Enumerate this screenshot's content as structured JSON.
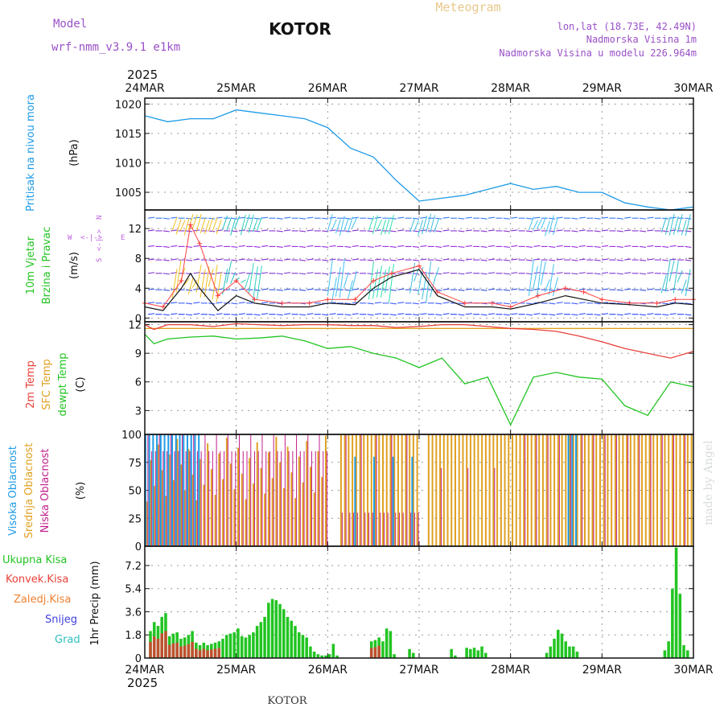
{
  "header": {
    "model_label": "Model",
    "model_name": "wrf-nmm_v3.9.1 e1km",
    "station": "KOTOR",
    "meteogram": "Meteogram",
    "lonlat": "lon,lat (18.73E, 42.49N)",
    "elevation": "Nadmorska Visina 1m",
    "model_elevation": "Nadmorska Visina u modelu 226.964m",
    "footer_station": "KOTOR",
    "watermark": "made by Angel"
  },
  "colors": {
    "pressure": "#1e9be6",
    "t2m": "#e8413a",
    "sfc": "#e0a020",
    "dewpt": "#22c422",
    "high_cloud": "#1e9be6",
    "mid_cloud": "#e0a020",
    "low_cloud": "#c0208a",
    "total_precip": "#22c422",
    "conv_precip": "#e8413a"
  },
  "chart_data": [
    {
      "type": "line",
      "panel": "pressure",
      "ylabel": [
        "Pritisak na nivou mora",
        "(hPa)"
      ],
      "x_categories": [
        "24MAR",
        "25MAR",
        "26MAR",
        "27MAR",
        "28MAR",
        "29MAR",
        "30MAR"
      ],
      "x_year": "2025",
      "yticks": [
        1005,
        1010,
        1015,
        1020
      ],
      "ylim": [
        1002,
        1021
      ],
      "x": [
        0,
        0.25,
        0.5,
        0.75,
        1.0,
        1.25,
        1.5,
        1.75,
        2.0,
        2.25,
        2.5,
        2.75,
        3.0,
        3.25,
        3.5,
        3.75,
        4.0,
        4.25,
        4.5,
        4.75,
        5.0,
        5.25,
        5.5,
        5.75,
        6.0
      ],
      "series": [
        {
          "values": [
            1018,
            1017,
            1017.5,
            1017.5,
            1019,
            1018.5,
            1018,
            1017.5,
            1016,
            1012.5,
            1011,
            1007,
            1003.5,
            1004,
            1004.5,
            1005.5,
            1006.5,
            1005.5,
            1006,
            1005,
            1005,
            1003.2,
            1002.5,
            1002,
            1002.5
          ]
        }
      ]
    },
    {
      "type": "line",
      "panel": "wind",
      "ylabel": [
        "10m Vjetar",
        "Brzina i Pravac",
        "(m/s)"
      ],
      "compass": {
        "n": "N",
        "s": "S",
        "e": "E",
        "w": "W"
      },
      "yticks": [
        0,
        4,
        8,
        12
      ],
      "ylim": [
        -0.5,
        14.5
      ],
      "x": [
        0,
        0.2,
        0.4,
        0.5,
        0.6,
        0.8,
        1.0,
        1.2,
        1.5,
        1.8,
        2.0,
        2.3,
        2.5,
        2.7,
        3.0,
        3.2,
        3.5,
        3.8,
        4.0,
        4.3,
        4.6,
        4.8,
        5.0,
        5.3,
        5.6,
        5.8,
        6.0
      ],
      "series": [
        {
          "values": [
            1.5,
            1.0,
            4.0,
            6.0,
            4.0,
            1.0,
            3.0,
            2.0,
            1.5,
            1.5,
            2.0,
            1.8,
            4.0,
            5.5,
            6.5,
            3.0,
            1.5,
            1.5,
            1.2,
            2.0,
            3.0,
            2.5,
            2.0,
            1.8,
            1.5,
            2.0,
            1.8
          ]
        },
        {
          "values": [
            2.0,
            1.5,
            5.0,
            12.5,
            10.0,
            3.0,
            5.0,
            2.5,
            2.0,
            2.0,
            2.5,
            2.5,
            5.0,
            6.0,
            7.0,
            3.5,
            2.0,
            2.0,
            1.5,
            3.0,
            4.0,
            3.5,
            2.5,
            2.0,
            2.0,
            2.5,
            2.5
          ]
        }
      ],
      "barb_rows": [
        0.5,
        2.0,
        3.8,
        6.0,
        7.8,
        9.6,
        11.7,
        13.4
      ]
    },
    {
      "type": "line",
      "panel": "temperature",
      "ylabel": [
        "2m Temp",
        "SFC Temp",
        "dewpt Temp",
        "(C)"
      ],
      "yticks": [
        3,
        6,
        9,
        12
      ],
      "ylim": [
        0.5,
        12.3
      ],
      "x": [
        0,
        0.1,
        0.25,
        0.5,
        0.75,
        1.0,
        1.25,
        1.5,
        1.75,
        2.0,
        2.25,
        2.5,
        2.75,
        3.0,
        3.25,
        3.5,
        3.75,
        4.0,
        4.25,
        4.5,
        4.75,
        5.0,
        5.25,
        5.5,
        5.75,
        6.0
      ],
      "series": [
        {
          "name": "2m Temp",
          "values": [
            12,
            11.5,
            12,
            12,
            11.8,
            12.1,
            12,
            11.9,
            12,
            12,
            11.9,
            11.9,
            11.7,
            11.8,
            12,
            12,
            11.8,
            11.6,
            11.5,
            11.3,
            10.8,
            10.2,
            9.5,
            9,
            8.5,
            9.2
          ]
        },
        {
          "name": "SFC Temp",
          "values": [
            11.6,
            11.6,
            11.6,
            11.6,
            11.6,
            11.6,
            11.6,
            11.6,
            11.6,
            11.6,
            11.6,
            11.6,
            11.6,
            11.6,
            11.6,
            11.6,
            11.6,
            11.6,
            11.6,
            11.6,
            11.6,
            11.6,
            11.6,
            11.6,
            11.6,
            11.6
          ]
        },
        {
          "name": "dewpt Temp",
          "values": [
            11,
            10,
            10.5,
            10.7,
            10.8,
            10.5,
            10.6,
            10.8,
            10.3,
            9.5,
            9.7,
            9.0,
            8.5,
            7.5,
            8.5,
            5.8,
            6.5,
            1.5,
            6.5,
            7.0,
            6.5,
            6.3,
            3.5,
            2.5,
            6.0,
            5.5
          ]
        }
      ]
    },
    {
      "type": "bar",
      "panel": "cloud",
      "ylabel": [
        "Visoka Oblacnost",
        "Srednja Oblacnost",
        "Niska Oblacnost",
        "(%)"
      ],
      "yticks": [
        0,
        25,
        50,
        75,
        100
      ],
      "ylim": [
        0,
        100
      ],
      "hours": 144
    },
    {
      "type": "bar",
      "panel": "precip",
      "ylabel": [
        "1hr Precip (mm)"
      ],
      "legend": [
        "Ukupna Kisa",
        "Konvek.Kisa",
        "Zaledj.Kisa",
        "Snijeg",
        "Grad"
      ],
      "yticks": [
        0,
        1.8,
        3.6,
        5.4,
        7.2
      ],
      "ylim": [
        0,
        8.7
      ],
      "bars_total": [
        2.1,
        2.8,
        2.5,
        3.2,
        3.5,
        1.7,
        1.9,
        2.0,
        1.5,
        1.6,
        1.8,
        2.1,
        1.2,
        1.0,
        1.2,
        1.0,
        1.1,
        1.2,
        1.3,
        1.5,
        1.8,
        1.9,
        2.0,
        2.3,
        1.7,
        1.6,
        1.8,
        2.0,
        2.5,
        2.8,
        3.2,
        4.3,
        4.6,
        4.5,
        4.2,
        3.8,
        3.2,
        2.9,
        2.5,
        2.0,
        1.8,
        1.6,
        0.9,
        0.5,
        0.3,
        0.2,
        0.2,
        0.3,
        1.1,
        0.2,
        0,
        0,
        0,
        0,
        0,
        0,
        0,
        0,
        1.3,
        1.4,
        1.6,
        1.3,
        2.3,
        2.1,
        0.3,
        0,
        0,
        0,
        0.7,
        0.4,
        0,
        0,
        0,
        0,
        0,
        0,
        0,
        0,
        0,
        0.7,
        0.2,
        0,
        0,
        0.8,
        0.7,
        0.8,
        0.6,
        0.9,
        0.4
      ],
      "bars_total_late": [
        0.4,
        0.9,
        1.5,
        2.2,
        1.9,
        1.3,
        0.9,
        0.9,
        0.5
      ],
      "bars_total_end": [
        0.6,
        1.3,
        5.4,
        8.6,
        5.0,
        1.0,
        0.6
      ]
    }
  ],
  "bottom_axis": {
    "labels": [
      "24MAR",
      "25MAR",
      "26MAR",
      "27MAR",
      "28MAR",
      "29MAR",
      "30MAR"
    ],
    "year": "2025"
  }
}
